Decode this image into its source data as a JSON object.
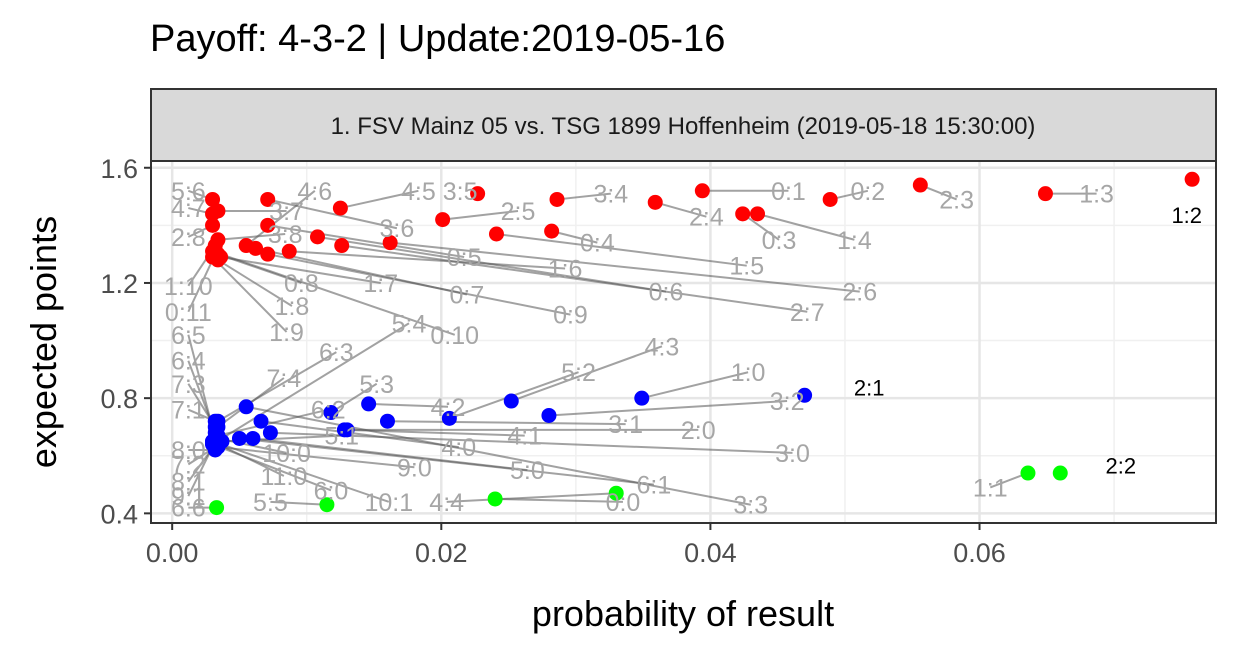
{
  "title": "Payoff: 4-3-2 | Update:2019-05-16",
  "chart_data": {
    "type": "scatter",
    "facet_label": "1. FSV Mainz 05 vs. TSG 1899 Hoffenheim (2019-05-18 15:30:00)",
    "xlabel": "probability of result",
    "ylabel": "expected points",
    "xlim": [
      -0.0015,
      0.0775
    ],
    "ylim": [
      0.37,
      1.62
    ],
    "x_ticks": [
      0,
      0.02,
      0.04,
      0.06
    ],
    "x_tick_labels": [
      "0.00",
      "0.02",
      "0.04",
      "0.06"
    ],
    "y_ticks": [
      0.4,
      0.8,
      1.2,
      1.6
    ],
    "y_tick_labels": [
      "0.4",
      "0.8",
      "1.2",
      "1.6"
    ],
    "grid": true,
    "colors": {
      "away_win": "#ff0000",
      "home_win": "#0000ff",
      "draw": "#00ff00",
      "label_grey": "#a6a6a6",
      "segment": "#555555"
    },
    "points": [
      {
        "label": "1:2",
        "x": 0.0758,
        "y": 1.56,
        "group": "away_win",
        "lx": 0.0754,
        "ly": 1.44,
        "highlight": true
      },
      {
        "label": "1:3",
        "x": 0.0649,
        "y": 1.51,
        "group": "away_win",
        "lx": 0.0687,
        "ly": 1.51
      },
      {
        "label": "2:3",
        "x": 0.0556,
        "y": 1.54,
        "group": "away_win",
        "lx": 0.0583,
        "ly": 1.49
      },
      {
        "label": "0:2",
        "x": 0.0489,
        "y": 1.49,
        "group": "away_win",
        "lx": 0.0517,
        "ly": 1.52
      },
      {
        "label": "0:1",
        "x": 0.0394,
        "y": 1.52,
        "group": "away_win",
        "lx": 0.0458,
        "ly": 1.52
      },
      {
        "label": "1:4",
        "x": 0.0435,
        "y": 1.44,
        "group": "away_win",
        "lx": 0.0507,
        "ly": 1.35
      },
      {
        "label": "0:3",
        "x": 0.0424,
        "y": 1.44,
        "group": "away_win",
        "lx": 0.0451,
        "ly": 1.35
      },
      {
        "label": "2:4",
        "x": 0.0359,
        "y": 1.48,
        "group": "away_win",
        "lx": 0.0397,
        "ly": 1.43
      },
      {
        "label": "3:4",
        "x": 0.0286,
        "y": 1.49,
        "group": "away_win",
        "lx": 0.0326,
        "ly": 1.51
      },
      {
        "label": "3:5",
        "x": 0.0227,
        "y": 1.51,
        "group": "away_win",
        "lx": 0.0214,
        "ly": 1.52
      },
      {
        "label": "2:5",
        "x": 0.0201,
        "y": 1.42,
        "group": "away_win",
        "lx": 0.0257,
        "ly": 1.45
      },
      {
        "label": "0:4",
        "x": 0.0282,
        "y": 1.38,
        "group": "away_win",
        "lx": 0.0316,
        "ly": 1.34
      },
      {
        "label": "1:5",
        "x": 0.0241,
        "y": 1.37,
        "group": "away_win",
        "lx": 0.0427,
        "ly": 1.26
      },
      {
        "label": "2:6",
        "x": 0.0162,
        "y": 1.34,
        "group": "away_win",
        "lx": 0.0511,
        "ly": 1.17
      },
      {
        "label": "2:7",
        "x": 0.0126,
        "y": 1.33,
        "group": "away_win",
        "lx": 0.0472,
        "ly": 1.1
      },
      {
        "label": "0:6",
        "x": 0.0108,
        "y": 1.36,
        "group": "away_win",
        "lx": 0.0367,
        "ly": 1.17
      },
      {
        "label": "1:6",
        "x": 0.0087,
        "y": 1.31,
        "group": "away_win",
        "lx": 0.0292,
        "ly": 1.25
      },
      {
        "label": "0:9",
        "x": 0.0071,
        "y": 1.3,
        "group": "away_win",
        "lx": 0.0296,
        "ly": 1.09
      },
      {
        "label": "0:7",
        "x": 0.0062,
        "y": 1.32,
        "group": "away_win",
        "lx": 0.0219,
        "ly": 1.16
      },
      {
        "label": "0:5",
        "x": 0.0071,
        "y": 1.4,
        "group": "away_win",
        "lx": 0.0217,
        "ly": 1.29
      },
      {
        "label": "3:6",
        "x": 0.0071,
        "y": 1.49,
        "group": "away_win",
        "lx": 0.0167,
        "ly": 1.39
      },
      {
        "label": "4:5",
        "x": 0.0125,
        "y": 1.46,
        "group": "away_win",
        "lx": 0.0183,
        "ly": 1.52
      },
      {
        "label": "4:6",
        "x": 0.0055,
        "y": 1.33,
        "group": "away_win",
        "lx": 0.0106,
        "ly": 1.52
      },
      {
        "label": "3:7",
        "x": 0.0034,
        "y": 1.45,
        "group": "away_win",
        "lx": 0.0085,
        "ly": 1.45
      },
      {
        "label": "3:8",
        "x": 0.0034,
        "y": 1.35,
        "group": "away_win",
        "lx": 0.0084,
        "ly": 1.37
      },
      {
        "label": "0:8",
        "x": 0.0034,
        "y": 1.3,
        "group": "away_win",
        "lx": 0.0096,
        "ly": 1.2
      },
      {
        "label": "1:7",
        "x": 0.0036,
        "y": 1.29,
        "group": "away_win",
        "lx": 0.0155,
        "ly": 1.2
      },
      {
        "label": "0:10",
        "x": 0.003,
        "y": 1.31,
        "group": "away_win",
        "lx": 0.021,
        "ly": 1.02
      },
      {
        "label": "1:8",
        "x": 0.0034,
        "y": 1.28,
        "group": "away_win",
        "lx": 0.0089,
        "ly": 1.12
      },
      {
        "label": "1:9",
        "x": 0.003,
        "y": 1.29,
        "group": "away_win",
        "lx": 0.0085,
        "ly": 1.03
      },
      {
        "label": "5:6",
        "x": 0.003,
        "y": 1.49,
        "group": "away_win",
        "lx": 0.0012,
        "ly": 1.52
      },
      {
        "label": "4:7",
        "x": 0.003,
        "y": 1.44,
        "group": "away_win",
        "lx": 0.0012,
        "ly": 1.46
      },
      {
        "label": "2:8",
        "x": 0.003,
        "y": 1.4,
        "group": "away_win",
        "lx": 0.0012,
        "ly": 1.36
      },
      {
        "label": "1:10",
        "x": 0.0032,
        "y": 1.33,
        "group": "away_win",
        "lx": 0.0012,
        "ly": 1.19
      },
      {
        "label": "0:11",
        "x": 0.0032,
        "y": 1.3,
        "group": "away_win",
        "lx": 0.0012,
        "ly": 1.1
      },
      {
        "label": "2:1",
        "x": 0.047,
        "y": 0.81,
        "group": "home_win",
        "lx": 0.0518,
        "ly": 0.84,
        "highlight": true
      },
      {
        "label": "1:0",
        "x": 0.0349,
        "y": 0.8,
        "group": "home_win",
        "lx": 0.0428,
        "ly": 0.89
      },
      {
        "label": "3:2",
        "x": 0.028,
        "y": 0.74,
        "group": "home_win",
        "lx": 0.0457,
        "ly": 0.79
      },
      {
        "label": "4:3",
        "x": 0.0252,
        "y": 0.79,
        "group": "home_win",
        "lx": 0.0364,
        "ly": 0.98
      },
      {
        "label": "5:2",
        "x": 0.0206,
        "y": 0.73,
        "group": "home_win",
        "lx": 0.0302,
        "ly": 0.89
      },
      {
        "label": "4:2",
        "x": 0.0146,
        "y": 0.78,
        "group": "home_win",
        "lx": 0.0205,
        "ly": 0.77
      },
      {
        "label": "5:3",
        "x": 0.0118,
        "y": 0.75,
        "group": "home_win",
        "lx": 0.0152,
        "ly": 0.85
      },
      {
        "label": "3:1",
        "x": 0.016,
        "y": 0.72,
        "group": "home_win",
        "lx": 0.0337,
        "ly": 0.71
      },
      {
        "label": "2:0",
        "x": 0.013,
        "y": 0.69,
        "group": "home_win",
        "lx": 0.0391,
        "ly": 0.69
      },
      {
        "label": "4:1",
        "x": 0.0128,
        "y": 0.69,
        "group": "home_win",
        "lx": 0.0262,
        "ly": 0.67
      },
      {
        "label": "3:0",
        "x": 0.0073,
        "y": 0.68,
        "group": "home_win",
        "lx": 0.0461,
        "ly": 0.61
      },
      {
        "label": "4:0",
        "x": 0.0066,
        "y": 0.72,
        "group": "home_win",
        "lx": 0.0213,
        "ly": 0.63
      },
      {
        "label": "5:0",
        "x": 0.006,
        "y": 0.66,
        "group": "home_win",
        "lx": 0.0264,
        "ly": 0.55
      },
      {
        "label": "6:1",
        "x": 0.005,
        "y": 0.66,
        "group": "home_win",
        "lx": 0.0358,
        "ly": 0.5
      },
      {
        "label": "3:3",
        "x": 0.0055,
        "y": 0.77,
        "group": "home_win",
        "lx": 0.043,
        "ly": 0.43
      },
      {
        "label": "6:2",
        "x": 0.0034,
        "y": 0.67,
        "group": "home_win",
        "lx": 0.0116,
        "ly": 0.76
      },
      {
        "label": "5:1",
        "x": 0.0037,
        "y": 0.65,
        "group": "home_win",
        "lx": 0.0126,
        "ly": 0.67
      },
      {
        "label": "6:3",
        "x": 0.0034,
        "y": 0.72,
        "group": "home_win",
        "lx": 0.0122,
        "ly": 0.96
      },
      {
        "label": "5:4",
        "x": 0.003,
        "y": 0.64,
        "group": "home_win",
        "lx": 0.0176,
        "ly": 1.06
      },
      {
        "label": "7:4",
        "x": 0.0034,
        "y": 0.7,
        "group": "home_win",
        "lx": 0.0083,
        "ly": 0.87
      },
      {
        "label": "10:0",
        "x": 0.0034,
        "y": 0.66,
        "group": "home_win",
        "lx": 0.0085,
        "ly": 0.61
      },
      {
        "label": "11:0",
        "x": 0.003,
        "y": 0.65,
        "group": "home_win",
        "lx": 0.0083,
        "ly": 0.53
      },
      {
        "label": "9:0",
        "x": 0.0034,
        "y": 0.63,
        "group": "home_win",
        "lx": 0.018,
        "ly": 0.56
      },
      {
        "label": "6:0",
        "x": 0.003,
        "y": 0.64,
        "group": "home_win",
        "lx": 0.0118,
        "ly": 0.48
      },
      {
        "label": "10:1",
        "x": 0.003,
        "y": 0.65,
        "group": "home_win",
        "lx": 0.0161,
        "ly": 0.44
      },
      {
        "label": "6:5",
        "x": 0.0032,
        "y": 0.66,
        "group": "home_win",
        "lx": 0.0012,
        "ly": 1.02
      },
      {
        "label": "6:4",
        "x": 0.0032,
        "y": 0.68,
        "group": "home_win",
        "lx": 0.0012,
        "ly": 0.93
      },
      {
        "label": "7:3",
        "x": 0.0032,
        "y": 0.7,
        "group": "home_win",
        "lx": 0.0012,
        "ly": 0.85
      },
      {
        "label": "7:1",
        "x": 0.0032,
        "y": 0.72,
        "group": "home_win",
        "lx": 0.0012,
        "ly": 0.76
      },
      {
        "label": "8:0",
        "x": 0.0032,
        "y": 0.62,
        "group": "home_win",
        "lx": 0.0012,
        "ly": 0.62
      },
      {
        "label": "7:2",
        "x": 0.0032,
        "y": 0.63,
        "group": "home_win",
        "lx": 0.0012,
        "ly": 0.57
      },
      {
        "label": "8:1",
        "x": 0.0032,
        "y": 0.64,
        "group": "home_win",
        "lx": 0.0012,
        "ly": 0.51
      },
      {
        "label": "9:1",
        "x": 0.0032,
        "y": 0.65,
        "group": "home_win",
        "lx": 0.0012,
        "ly": 0.46
      },
      {
        "label": "2:2",
        "x": 0.066,
        "y": 0.54,
        "group": "draw",
        "lx": 0.0705,
        "ly": 0.57,
        "highlight": true
      },
      {
        "label": "1:1",
        "x": 0.0636,
        "y": 0.54,
        "group": "draw",
        "lx": 0.0608,
        "ly": 0.49
      },
      {
        "label": "0:0",
        "x": 0.024,
        "y": 0.45,
        "group": "draw",
        "lx": 0.0335,
        "ly": 0.44
      },
      {
        "label": "4:4",
        "x": 0.033,
        "y": 0.47,
        "group": "draw",
        "lx": 0.0204,
        "ly": 0.44
      },
      {
        "label": "5:5",
        "x": 0.0115,
        "y": 0.43,
        "group": "draw",
        "lx": 0.0073,
        "ly": 0.44
      },
      {
        "label": "6:6",
        "x": 0.0033,
        "y": 0.42,
        "group": "draw",
        "lx": 0.0012,
        "ly": 0.42
      }
    ]
  }
}
